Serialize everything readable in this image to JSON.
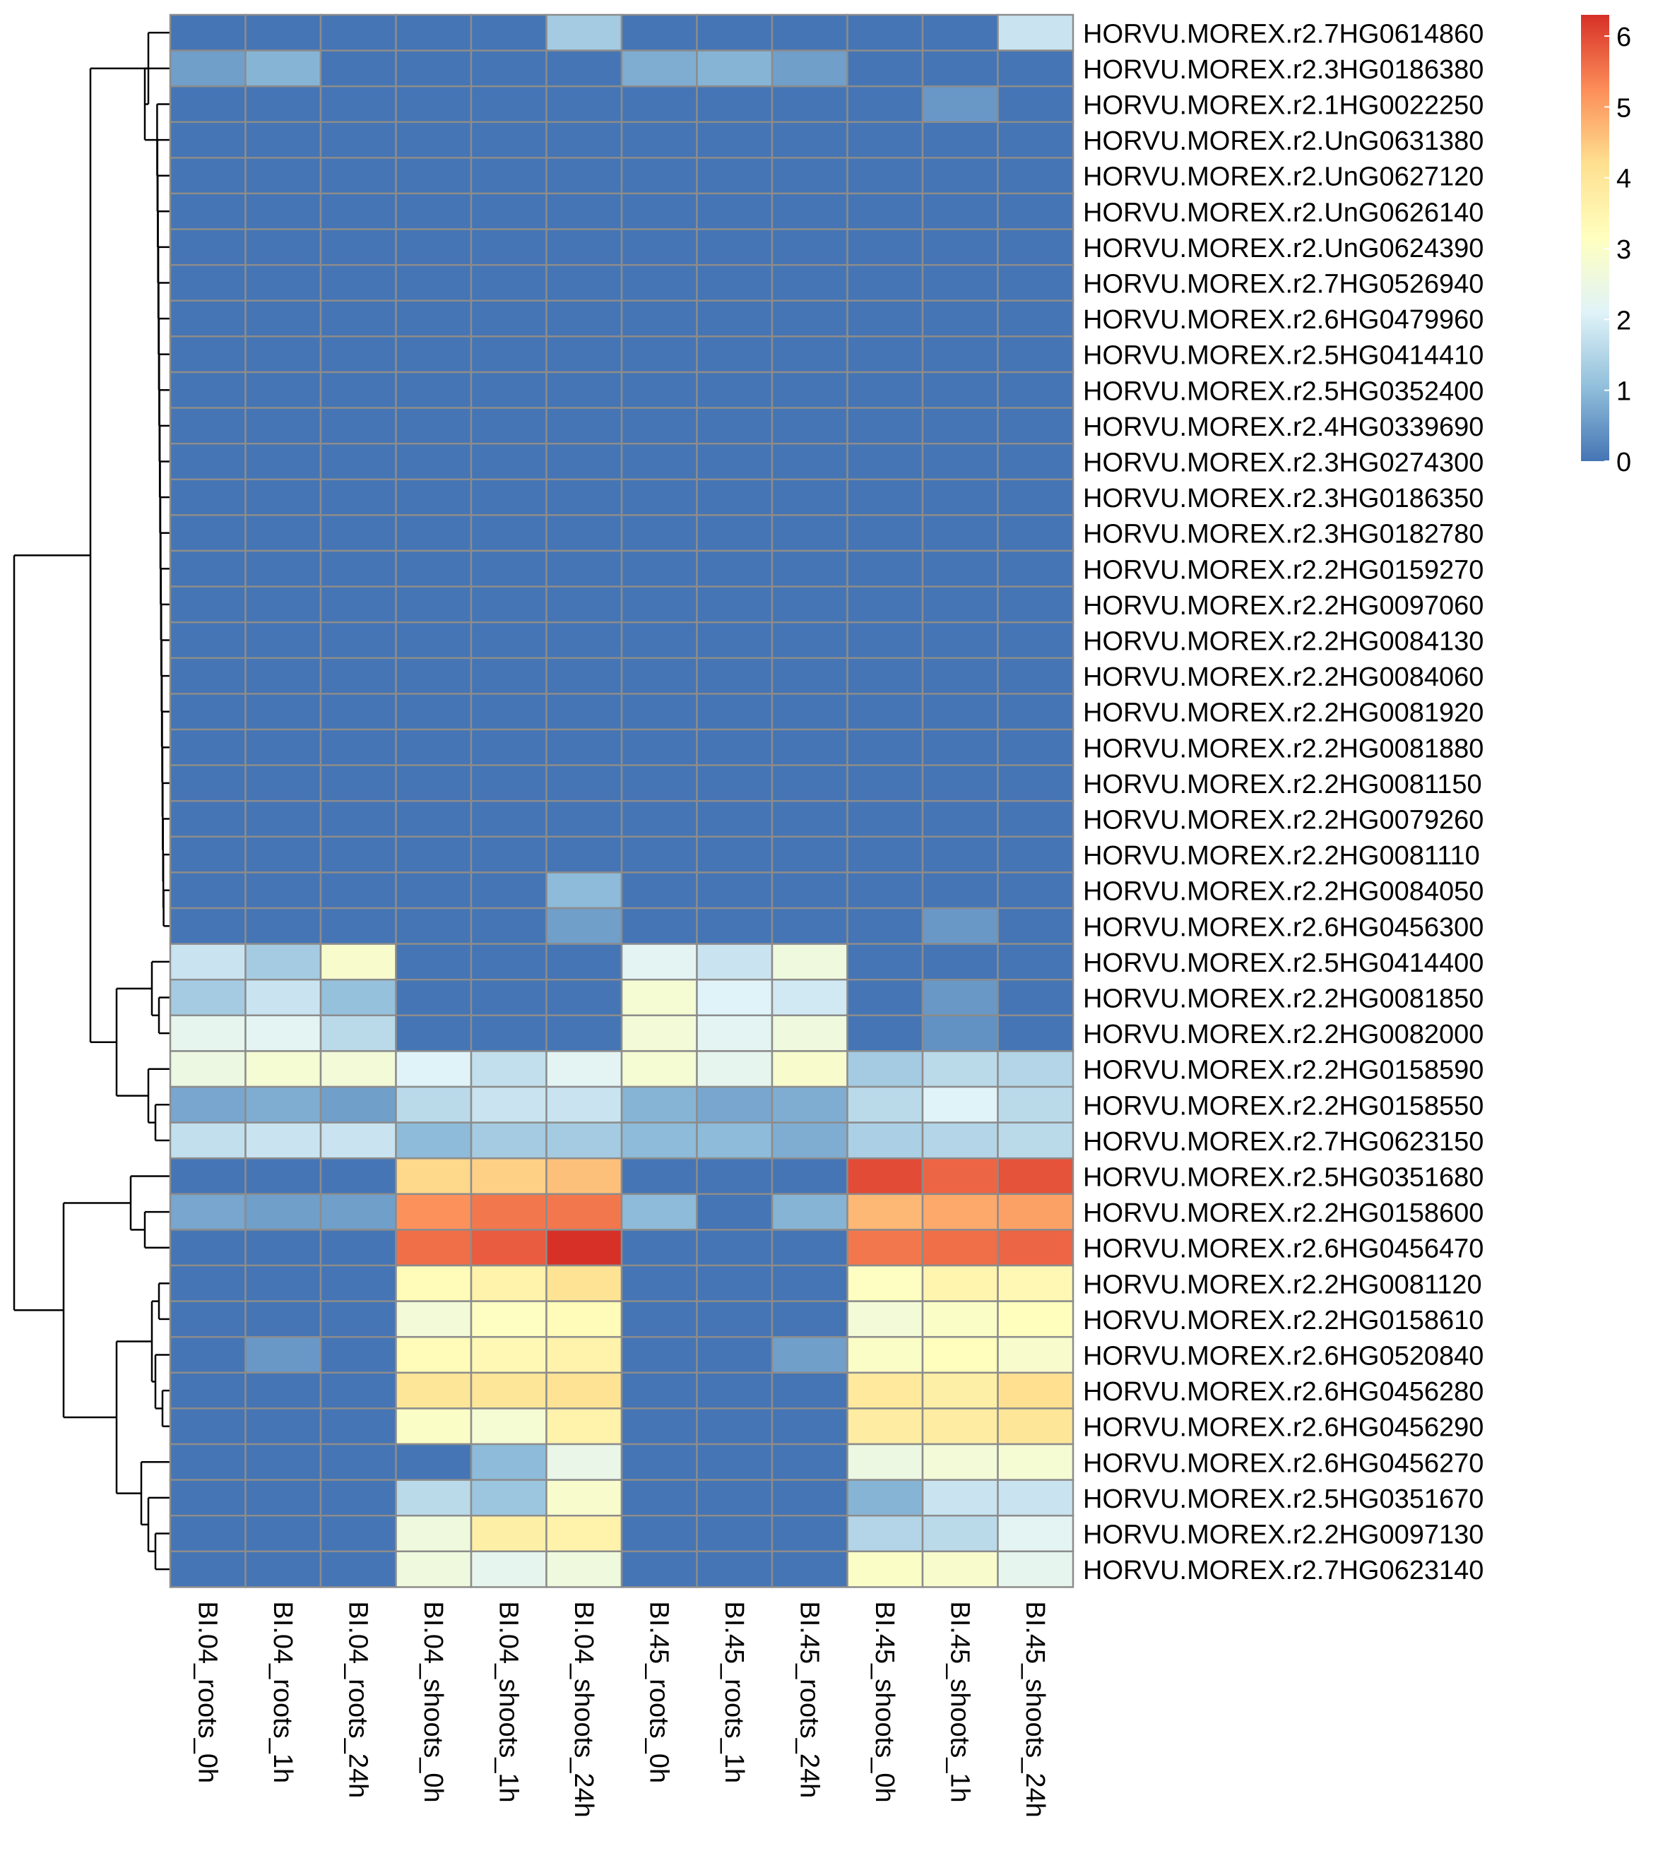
{
  "chart_data": {
    "type": "heatmap",
    "title": "",
    "xlabel": "",
    "ylabel": "",
    "columns": [
      "BI.04_roots_0h",
      "BI.04_roots_1h",
      "BI.04_roots_24h",
      "BI.04_shoots_0h",
      "BI.04_shoots_1h",
      "BI.04_shoots_24h",
      "BI.45_roots_0h",
      "BI.45_roots_1h",
      "BI.45_roots_24h",
      "BI.45_shoots_0h",
      "BI.45_shoots_1h",
      "BI.45_shoots_24h"
    ],
    "rows": [
      "HORVU.MOREX.r2.7HG0614860",
      "HORVU.MOREX.r2.3HG0186380",
      "HORVU.MOREX.r2.1HG0022250",
      "HORVU.MOREX.r2.UnG0631380",
      "HORVU.MOREX.r2.UnG0627120",
      "HORVU.MOREX.r2.UnG0626140",
      "HORVU.MOREX.r2.UnG0624390",
      "HORVU.MOREX.r2.7HG0526940",
      "HORVU.MOREX.r2.6HG0479960",
      "HORVU.MOREX.r2.5HG0414410",
      "HORVU.MOREX.r2.5HG0352400",
      "HORVU.MOREX.r2.4HG0339690",
      "HORVU.MOREX.r2.3HG0274300",
      "HORVU.MOREX.r2.3HG0186350",
      "HORVU.MOREX.r2.3HG0182780",
      "HORVU.MOREX.r2.2HG0159270",
      "HORVU.MOREX.r2.2HG0097060",
      "HORVU.MOREX.r2.2HG0084130",
      "HORVU.MOREX.r2.2HG0084060",
      "HORVU.MOREX.r2.2HG0081920",
      "HORVU.MOREX.r2.2HG0081880",
      "HORVU.MOREX.r2.2HG0081150",
      "HORVU.MOREX.r2.2HG0079260",
      "HORVU.MOREX.r2.2HG0081110",
      "HORVU.MOREX.r2.2HG0084050",
      "HORVU.MOREX.r2.6HG0456300",
      "HORVU.MOREX.r2.5HG0414400",
      "HORVU.MOREX.r2.2HG0081850",
      "HORVU.MOREX.r2.2HG0082000",
      "HORVU.MOREX.r2.2HG0158590",
      "HORVU.MOREX.r2.2HG0158550",
      "HORVU.MOREX.r2.7HG0623150",
      "HORVU.MOREX.r2.5HG0351680",
      "HORVU.MOREX.r2.2HG0158600",
      "HORVU.MOREX.r2.6HG0456470",
      "HORVU.MOREX.r2.2HG0081120",
      "HORVU.MOREX.r2.2HG0158610",
      "HORVU.MOREX.r2.6HG0520840",
      "HORVU.MOREX.r2.6HG0456280",
      "HORVU.MOREX.r2.6HG0456290",
      "HORVU.MOREX.r2.6HG0456270",
      "HORVU.MOREX.r2.5HG0351670",
      "HORVU.MOREX.r2.2HG0097130",
      "HORVU.MOREX.r2.7HG0623140"
    ],
    "values": [
      [
        0,
        0,
        0,
        0,
        0,
        1.3,
        0,
        0,
        0,
        0,
        0,
        1.8
      ],
      [
        0.6,
        0.9,
        0,
        0,
        0,
        0,
        0.8,
        0.9,
        0.6,
        0,
        0,
        0
      ],
      [
        0,
        0,
        0,
        0,
        0,
        0,
        0,
        0,
        0,
        0,
        0.5,
        0
      ],
      [
        0,
        0,
        0,
        0,
        0,
        0,
        0,
        0,
        0,
        0,
        0,
        0
      ],
      [
        0,
        0,
        0,
        0,
        0,
        0,
        0,
        0,
        0,
        0,
        0,
        0
      ],
      [
        0,
        0,
        0,
        0,
        0,
        0,
        0,
        0,
        0,
        0,
        0,
        0
      ],
      [
        0,
        0,
        0,
        0,
        0,
        0,
        0,
        0,
        0,
        0,
        0,
        0
      ],
      [
        0,
        0,
        0,
        0,
        0,
        0,
        0,
        0,
        0,
        0,
        0,
        0
      ],
      [
        0,
        0,
        0,
        0,
        0,
        0,
        0,
        0,
        0,
        0,
        0,
        0
      ],
      [
        0,
        0,
        0,
        0,
        0,
        0,
        0,
        0,
        0,
        0,
        0,
        0
      ],
      [
        0,
        0,
        0,
        0,
        0,
        0,
        0,
        0,
        0,
        0,
        0,
        0
      ],
      [
        0,
        0,
        0,
        0,
        0,
        0,
        0,
        0,
        0,
        0,
        0,
        0
      ],
      [
        0,
        0,
        0,
        0,
        0,
        0,
        0,
        0,
        0,
        0,
        0,
        0
      ],
      [
        0,
        0,
        0,
        0,
        0,
        0,
        0,
        0,
        0,
        0,
        0,
        0
      ],
      [
        0,
        0,
        0,
        0,
        0,
        0,
        0,
        0,
        0,
        0,
        0,
        0
      ],
      [
        0,
        0,
        0,
        0,
        0,
        0,
        0,
        0,
        0,
        0,
        0,
        0
      ],
      [
        0,
        0,
        0,
        0,
        0,
        0,
        0,
        0,
        0,
        0,
        0,
        0
      ],
      [
        0,
        0,
        0,
        0,
        0,
        0,
        0,
        0,
        0,
        0,
        0,
        0
      ],
      [
        0,
        0,
        0,
        0,
        0,
        0,
        0,
        0,
        0,
        0,
        0,
        0
      ],
      [
        0,
        0,
        0,
        0,
        0,
        0,
        0,
        0,
        0,
        0,
        0,
        0
      ],
      [
        0,
        0,
        0,
        0,
        0,
        0,
        0,
        0,
        0,
        0,
        0,
        0
      ],
      [
        0,
        0,
        0,
        0,
        0,
        0,
        0,
        0,
        0,
        0,
        0,
        0
      ],
      [
        0,
        0,
        0,
        0,
        0,
        0,
        0,
        0,
        0,
        0,
        0,
        0
      ],
      [
        0,
        0,
        0,
        0,
        0,
        0,
        0,
        0,
        0,
        0,
        0,
        0
      ],
      [
        0,
        0,
        0,
        0,
        0,
        1.0,
        0,
        0,
        0,
        0,
        0,
        0
      ],
      [
        0,
        0,
        0,
        0,
        0,
        0.6,
        0,
        0,
        0,
        0,
        0.5,
        0
      ],
      [
        1.8,
        1.3,
        2.9,
        0,
        0,
        0,
        2.2,
        1.8,
        2.6,
        0,
        0,
        0
      ],
      [
        1.3,
        1.8,
        1.1,
        0,
        0,
        0,
        2.8,
        2.1,
        1.9,
        0,
        0.5,
        0
      ],
      [
        2.3,
        2.2,
        1.6,
        0,
        0,
        0,
        2.7,
        2.2,
        2.6,
        0,
        0.4,
        0
      ],
      [
        2.5,
        2.8,
        2.7,
        2.1,
        1.7,
        2.2,
        2.8,
        2.3,
        2.9,
        1.3,
        1.6,
        1.5
      ],
      [
        0.7,
        0.8,
        0.6,
        1.6,
        1.8,
        1.8,
        0.9,
        0.7,
        0.8,
        1.6,
        2.1,
        1.6
      ],
      [
        1.7,
        1.8,
        1.8,
        1.0,
        1.3,
        1.3,
        1.0,
        1.0,
        0.8,
        1.4,
        1.5,
        1.6
      ],
      [
        0,
        0,
        0,
        4.3,
        4.4,
        4.6,
        0,
        0,
        0,
        6.0,
        5.7,
        5.9
      ],
      [
        0.7,
        0.6,
        0.6,
        5.2,
        5.5,
        5.5,
        1.0,
        0,
        0.9,
        4.7,
        4.9,
        5.0
      ],
      [
        0,
        0,
        0,
        5.6,
        5.8,
        6.3,
        0,
        0,
        0,
        5.5,
        5.6,
        5.7
      ],
      [
        0,
        0,
        0,
        3.3,
        3.6,
        4.1,
        0,
        0,
        0,
        3.1,
        3.5,
        3.4
      ],
      [
        0,
        0,
        0,
        2.7,
        3.1,
        3.3,
        0,
        0,
        0,
        2.7,
        3.0,
        3.2
      ],
      [
        0,
        0.5,
        0,
        3.3,
        3.4,
        3.6,
        0,
        0,
        0.6,
        3.0,
        3.2,
        2.9
      ],
      [
        0,
        0,
        0,
        4.0,
        4.0,
        4.1,
        0,
        0,
        0,
        3.9,
        3.7,
        4.2
      ],
      [
        0,
        0,
        0,
        3.0,
        2.8,
        3.6,
        0,
        0,
        0,
        3.8,
        3.8,
        4.0
      ],
      [
        0,
        0,
        0,
        0,
        1.0,
        2.4,
        0,
        0,
        0,
        2.5,
        2.7,
        2.8
      ],
      [
        0,
        0,
        0,
        1.6,
        1.2,
        2.9,
        0,
        0,
        0,
        0.9,
        1.8,
        1.8
      ],
      [
        0,
        0,
        0,
        2.6,
        3.7,
        3.6,
        0,
        0,
        0,
        1.5,
        1.6,
        2.2
      ],
      [
        0,
        0,
        0,
        2.6,
        2.3,
        2.6,
        0,
        0,
        0,
        3.0,
        2.9,
        2.3
      ]
    ],
    "colorbar": {
      "ticks": [
        0,
        1,
        2,
        3,
        4,
        5,
        6
      ],
      "range": [
        0,
        6.3
      ],
      "palette": [
        "#4575b4",
        "#91bfdb",
        "#e0f3f8",
        "#ffffbf",
        "#fee090",
        "#fc8d59",
        "#d73027"
      ]
    },
    "row_dendrogram": true,
    "cell_border_color": "#8c8c8c"
  }
}
